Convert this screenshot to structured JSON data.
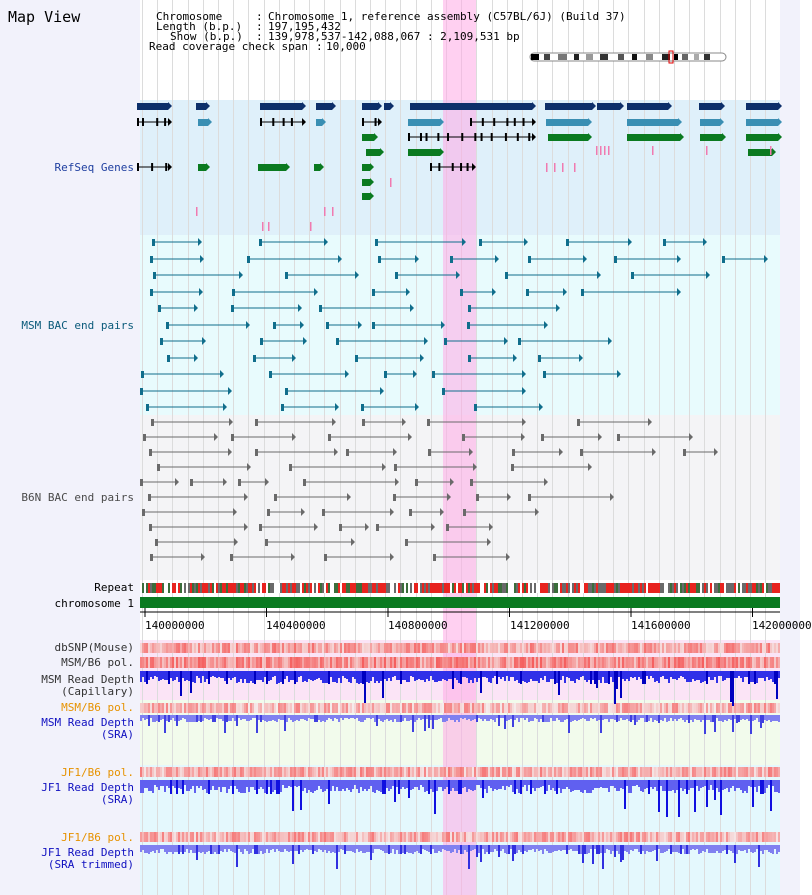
{
  "title": "Map View",
  "info": {
    "chromosome_key": "Chromosome",
    "chromosome_value": "Chromosome 1, reference assembly (C57BL/6J) (Build 37)",
    "length_key": "Length (b.p.)",
    "length_value": "197,195,432",
    "show_key": "Show (b.p.)",
    "show_value": "139,978,537-142,088,067 : 2,109,531 bp",
    "coverage_key": "Read coverage check span",
    "coverage_value": "10,000"
  },
  "tracks": {
    "refseq": "RefSeq Genes",
    "msm_bac": "MSM BAC end pairs",
    "b6n_bac": "B6N BAC end pairs",
    "repeat": "Repeat",
    "chromosome": "chromosome 1",
    "dbsnp": "dbSNP(Mouse)",
    "msm_b6_pol_1": "MSM/B6 pol.",
    "msm_depth_cap_1": "MSM Read Depth",
    "msm_depth_cap_2": "(Capillary)",
    "msm_b6_pol_2": "MSM/B6 pol.",
    "msm_depth_sra_1": "MSM Read Depth",
    "msm_depth_sra_2": "(SRA)",
    "jf1_b6_pol_1": "JF1/B6 pol.",
    "jf1_depth_sra_1": "JF1 Read Depth",
    "jf1_depth_sra_2": "(SRA)",
    "jf1_b6_pol_2": "JF1/B6 pol.",
    "jf1_depth_trim_1": "JF1 Read Depth",
    "jf1_depth_trim_2": "(SRA trimmed)"
  },
  "axis": {
    "ticks": [
      "140000000",
      "140400000",
      "140800000",
      "141200000",
      "141600000",
      "142000000"
    ]
  },
  "colors": {
    "refseq_label": "#1f3fa0",
    "msm_label": "#0a5a7a",
    "b6n_label": "#4a4a4a",
    "orange_label": "#e69200",
    "blue_label": "#1010c0",
    "gene_navy": "#0d2f6a",
    "gene_teal": "#3a8fb3",
    "gene_green": "#0a7a20",
    "chrom_green": "#0a7a20",
    "highlight": "#ffaae6"
  }
}
